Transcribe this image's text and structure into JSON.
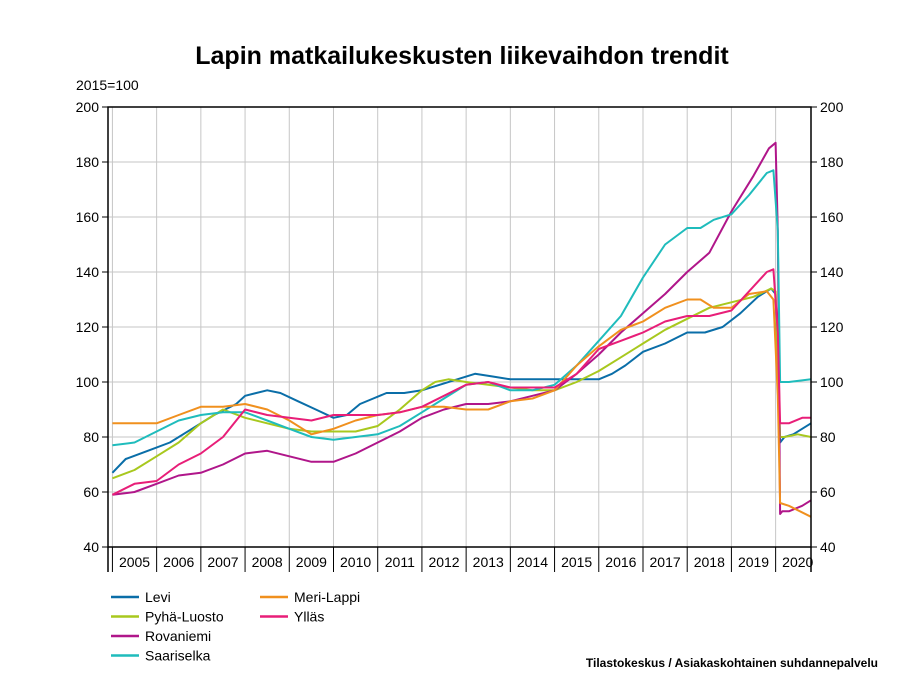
{
  "chart_data": {
    "type": "line",
    "title": "Lapin matkailukeskusten liikevaihdon trendit",
    "unit_label": "2015=100",
    "source": "Tilastokeskus / Asiakaskohtainen suhdannepalvelu",
    "ylim": [
      40,
      200
    ],
    "xlim": [
      2004.9,
      2020.8
    ],
    "y_ticks": [
      40,
      60,
      80,
      100,
      120,
      140,
      160,
      180,
      200
    ],
    "year_labels": [
      "2005",
      "2006",
      "2007",
      "2008",
      "2009",
      "2010",
      "2011",
      "2012",
      "2013",
      "2014",
      "2015",
      "2016",
      "2017",
      "2018",
      "2019",
      "2020"
    ],
    "grid": true,
    "legend_position": "bottom-left",
    "series": [
      {
        "name": "Levi",
        "color": "#0a6ea8",
        "x": [
          2005.0,
          2005.3,
          2005.8,
          2006.3,
          2006.8,
          2007.3,
          2007.8,
          2008.0,
          2008.5,
          2008.8,
          2009.2,
          2009.6,
          2010.0,
          2010.3,
          2010.6,
          2010.9,
          2011.2,
          2011.6,
          2012.0,
          2012.4,
          2012.8,
          2013.2,
          2013.6,
          2014.0,
          2014.5,
          2015.0,
          2015.5,
          2016.0,
          2016.3,
          2016.6,
          2017.0,
          2017.5,
          2018.0,
          2018.4,
          2018.8,
          2019.2,
          2019.6,
          2019.9,
          2020.0,
          2020.1,
          2020.2,
          2020.4,
          2020.8
        ],
        "y": [
          67,
          72,
          75,
          78,
          83,
          88,
          92,
          95,
          97,
          96,
          93,
          90,
          87,
          88,
          92,
          94,
          96,
          96,
          97,
          99,
          101,
          103,
          102,
          101,
          101,
          101,
          101,
          101,
          103,
          106,
          111,
          114,
          118,
          118,
          120,
          125,
          131,
          134,
          132,
          78,
          80,
          81,
          85
        ]
      },
      {
        "name": "Pyhä-Luosto",
        "color": "#a8c81e",
        "x": [
          2005.0,
          2005.5,
          2006.0,
          2006.5,
          2007.0,
          2007.5,
          2008.0,
          2008.5,
          2009.0,
          2009.5,
          2010.0,
          2010.5,
          2011.0,
          2011.5,
          2012.0,
          2012.3,
          2012.6,
          2013.0,
          2013.5,
          2014.0,
          2014.5,
          2015.0,
          2015.5,
          2016.0,
          2016.5,
          2017.0,
          2017.5,
          2018.0,
          2018.5,
          2019.0,
          2019.5,
          2019.9,
          2020.0,
          2020.1,
          2020.2,
          2020.5,
          2020.8
        ],
        "y": [
          65,
          68,
          73,
          78,
          85,
          90,
          87,
          85,
          83,
          82,
          82,
          82,
          84,
          90,
          97,
          100,
          101,
          100,
          99,
          98,
          97,
          97,
          100,
          104,
          109,
          114,
          119,
          123,
          127,
          129,
          131,
          134,
          133,
          80,
          80,
          81,
          80
        ]
      },
      {
        "name": "Rovaniemi",
        "color": "#b0168a",
        "x": [
          2005.0,
          2005.5,
          2006.0,
          2006.5,
          2007.0,
          2007.5,
          2008.0,
          2008.5,
          2009.0,
          2009.5,
          2010.0,
          2010.5,
          2011.0,
          2011.5,
          2012.0,
          2012.5,
          2013.0,
          2013.5,
          2014.0,
          2014.5,
          2015.0,
          2015.5,
          2016.0,
          2016.5,
          2017.0,
          2017.5,
          2018.0,
          2018.5,
          2019.0,
          2019.5,
          2019.85,
          2020.0,
          2020.05,
          2020.1,
          2020.15,
          2020.3,
          2020.6,
          2020.8
        ],
        "y": [
          59,
          60,
          63,
          66,
          67,
          70,
          74,
          75,
          73,
          71,
          71,
          74,
          78,
          82,
          87,
          90,
          92,
          92,
          93,
          95,
          97,
          103,
          110,
          118,
          125,
          132,
          140,
          147,
          162,
          175,
          185,
          187,
          155,
          52,
          53,
          53,
          55,
          57
        ]
      },
      {
        "name": "Saariselka",
        "color": "#1fbcbc",
        "x": [
          2005.0,
          2005.5,
          2006.0,
          2006.5,
          2007.0,
          2007.5,
          2008.0,
          2008.5,
          2009.0,
          2009.5,
          2010.0,
          2010.5,
          2011.0,
          2011.5,
          2012.0,
          2012.5,
          2013.0,
          2013.5,
          2014.0,
          2014.5,
          2015.0,
          2015.5,
          2016.0,
          2016.5,
          2017.0,
          2017.5,
          2018.0,
          2018.3,
          2018.6,
          2019.0,
          2019.4,
          2019.8,
          2019.95,
          2020.05,
          2020.1,
          2020.3,
          2020.8
        ],
        "y": [
          77,
          78,
          82,
          86,
          88,
          89,
          89,
          86,
          83,
          80,
          79,
          80,
          81,
          84,
          89,
          94,
          99,
          100,
          97,
          97,
          99,
          106,
          115,
          124,
          138,
          150,
          156,
          156,
          159,
          161,
          168,
          176,
          177,
          155,
          100,
          100,
          101
        ]
      },
      {
        "name": "Meri-Lappi",
        "color": "#f0901e",
        "x": [
          2005.0,
          2005.5,
          2006.0,
          2006.5,
          2007.0,
          2007.5,
          2008.0,
          2008.5,
          2009.0,
          2009.5,
          2010.0,
          2010.5,
          2011.0,
          2011.5,
          2012.0,
          2012.5,
          2013.0,
          2013.5,
          2014.0,
          2014.5,
          2015.0,
          2015.5,
          2016.0,
          2016.5,
          2017.0,
          2017.5,
          2018.0,
          2018.3,
          2018.6,
          2019.0,
          2019.4,
          2019.8,
          2019.95,
          2020.05,
          2020.1,
          2020.3,
          2020.8
        ],
        "y": [
          85,
          85,
          85,
          88,
          91,
          91,
          92,
          90,
          86,
          81,
          83,
          86,
          88,
          89,
          91,
          91,
          90,
          90,
          93,
          94,
          97,
          106,
          113,
          119,
          122,
          127,
          130,
          130,
          127,
          127,
          132,
          133,
          130,
          95,
          56,
          55,
          51
        ]
      },
      {
        "name": "Ylläs",
        "color": "#e81e78",
        "x": [
          2005.0,
          2005.5,
          2006.0,
          2006.5,
          2007.0,
          2007.5,
          2008.0,
          2008.5,
          2009.0,
          2009.5,
          2010.0,
          2010.5,
          2011.0,
          2011.5,
          2012.0,
          2012.5,
          2013.0,
          2013.5,
          2014.0,
          2014.5,
          2015.0,
          2015.5,
          2016.0,
          2016.5,
          2017.0,
          2017.5,
          2018.0,
          2018.5,
          2019.0,
          2019.4,
          2019.8,
          2019.95,
          2020.05,
          2020.1,
          2020.3,
          2020.6,
          2020.8
        ],
        "y": [
          59,
          63,
          64,
          70,
          74,
          80,
          90,
          88,
          87,
          86,
          88,
          88,
          88,
          89,
          91,
          95,
          99,
          100,
          98,
          98,
          98,
          103,
          112,
          115,
          118,
          122,
          124,
          124,
          126,
          133,
          140,
          141,
          118,
          85,
          85,
          87,
          87
        ]
      }
    ]
  }
}
